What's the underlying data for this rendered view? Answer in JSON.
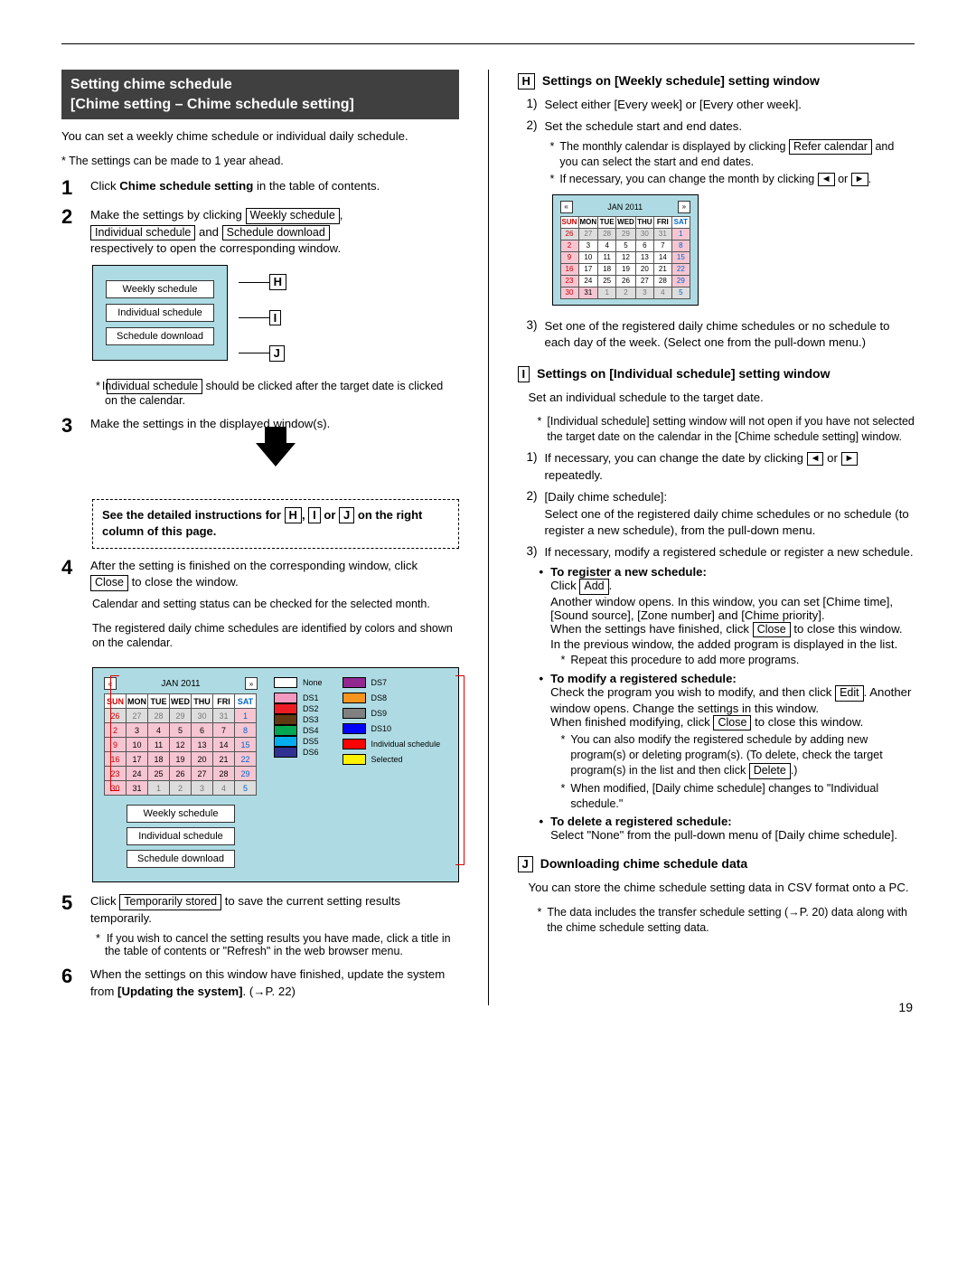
{
  "page_number": "19",
  "title_bar_line1": "Setting chime schedule",
  "title_bar_line2": "[Chime setting – Chime schedule setting]",
  "intro": "You can set a weekly chime schedule or individual daily schedule.",
  "intro_note": "* The settings can be made to 1 year ahead.",
  "left": {
    "step1_a": "Click ",
    "step1_bold": "Chime schedule setting",
    "step1_b": " in the table of contents.",
    "step2_a": "Make the settings by clicking ",
    "weekly_btn": "Weekly schedule",
    "individual_btn": "Individual schedule",
    "download_btn": "Schedule download",
    "step2_b": " respectively to open the corresponding window.",
    "and": " and ",
    "comma": ", ",
    "key_H": "H",
    "key_I": "I",
    "key_J": "J",
    "step2_note_a": " should be clicked after the target date is clicked on the calendar.",
    "step3": "Make the settings in the displayed window(s).",
    "dashed_a": "See the detailed instructions for ",
    "dashed_b": " or ",
    "dashed_c": " on the right column of this page.",
    "step4_a": "After the setting is finished on the corresponding window, click ",
    "close_btn": "Close",
    "step4_b": " to close the window.",
    "cal_cap1": "Calendar and setting status can be checked for the selected month.",
    "cal_cap2": "The registered daily chime schedules are identified by colors and shown on the calendar.",
    "step5_a": "Click ",
    "temp_btn": "Temporarily stored",
    "step5_b": " to save the current setting results temporarily.",
    "step5_note": "If you wish to cancel the setting results you have made, click a title in the table of contents or \"Refresh\" in the web browser menu.",
    "step6_a": "When the settings on this window have finished, update the system from ",
    "step6_bold": "[Updating the system]",
    "step6_b": ". (→P. 22)"
  },
  "calendar": {
    "title": "JAN 2011",
    "days": [
      "SUN",
      "MON",
      "TUE",
      "WED",
      "THU",
      "FRI",
      "SAT"
    ],
    "rows": [
      [
        "26",
        "27",
        "28",
        "29",
        "30",
        "31",
        "1"
      ],
      [
        "2",
        "3",
        "4",
        "5",
        "6",
        "7",
        "8"
      ],
      [
        "9",
        "10",
        "11",
        "12",
        "13",
        "14",
        "15"
      ],
      [
        "16",
        "17",
        "18",
        "19",
        "20",
        "21",
        "22"
      ],
      [
        "23",
        "24",
        "25",
        "26",
        "27",
        "28",
        "29"
      ],
      [
        "30",
        "31",
        "1",
        "2",
        "3",
        "4",
        "5"
      ]
    ],
    "legend_none": "None",
    "legend": [
      {
        "label": "DS1",
        "color": "#f49ac1"
      },
      {
        "label": "DS2",
        "color": "#ed1c24"
      },
      {
        "label": "DS3",
        "color": "#603913"
      },
      {
        "label": "DS4",
        "color": "#00a651"
      },
      {
        "label": "DS5",
        "color": "#00aeef"
      },
      {
        "label": "DS6",
        "color": "#2e3192"
      }
    ],
    "legend2": [
      {
        "label": "DS7",
        "color": "#92278f"
      },
      {
        "label": "DS8",
        "color": "#f7941d"
      },
      {
        "label": "DS9",
        "color": "#808080"
      },
      {
        "label": "DS10",
        "color": "#0000ff"
      },
      {
        "label": "Individual schedule",
        "color": "#ff0000"
      },
      {
        "label": "Selected",
        "color": "#fff200"
      }
    ]
  },
  "right": {
    "H_title": "Settings on [Weekly schedule] setting window",
    "H1": "Select either [Every week] or [Every other week].",
    "H2": "Set the schedule start and end dates.",
    "H2_note1_a": "The monthly calendar is displayed by clicking ",
    "refer_btn": "Refer calendar",
    "H2_note1_b": " and you can select the start and end dates.",
    "H2_note2_a": "If necessary, you can change the month by clicking ",
    "or": " or ",
    "period": ".",
    "H3": "Set one of the registered daily chime schedules or no schedule to each day of the week. (Select one from the pull-down menu.)",
    "I_title": "Settings on [Individual schedule] setting window",
    "I_intro": "Set an individual schedule to the target date.",
    "I_note": "[Individual schedule] setting window will not open if you have not selected the target date on the calendar in the [Chime schedule setting] window.",
    "I1_a": "If necessary, you can change the date by clicking ",
    "I1_b": " repeatedly.",
    "I2_head": "[Daily chime schedule]:",
    "I2_body": "Select one of the registered daily chime schedules or no schedule (to register a new schedule), from the pull-down menu.",
    "I3": "If necessary, modify a registered schedule or register a new schedule.",
    "reg_title": "To register a new schedule:",
    "reg_a": "Click ",
    "add_btn": "Add",
    "reg_b": "Another window opens. In this window, you can set [Chime time], [Sound source], [Zone number] and [Chime priority].",
    "reg_c_a": "When the settings have finished, click ",
    "reg_c_b": " to close this window. In the previous window, the added program is displayed in the list.",
    "reg_note": "Repeat this procedure to add more programs.",
    "mod_title": "To modify a registered schedule:",
    "mod_a": "Check the program you wish to modify, and then click ",
    "edit_btn": "Edit",
    "mod_b": ". Another window opens. Change the settings in this window.",
    "mod_c_a": "When finished modifying, click ",
    "mod_c_b": " to close this window.",
    "mod_note1_a": "You can also modify the registered schedule by adding new program(s) or deleting program(s). (To delete, check the target program(s) in the list and then click ",
    "delete_btn": "Delete",
    "mod_note1_b": ".)",
    "mod_note2": "When modified, [Daily chime schedule] changes to \"Individual schedule.\"",
    "del_title": "To delete a registered schedule:",
    "del_body": "Select \"None\" from the pull-down menu of [Daily chime schedule].",
    "J_title": "Downloading chime schedule data",
    "J_intro": "You can store the chime schedule setting data in CSV format onto a PC.",
    "J_note": "The data includes the transfer schedule setting (→P. 20) data along with the chime schedule setting data."
  }
}
